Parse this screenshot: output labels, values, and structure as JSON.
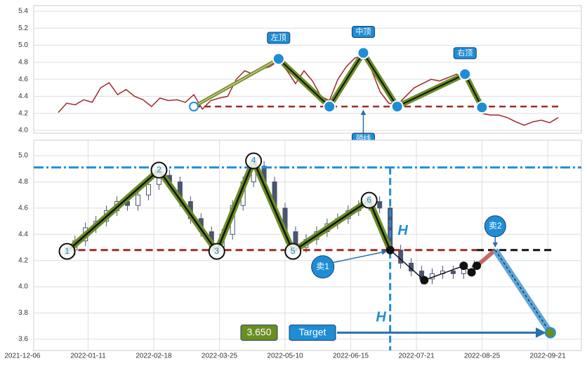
{
  "chart_data": [
    {
      "type": "line",
      "ylim": [
        3.967,
        5.466
      ],
      "yticks": [
        {
          "value": 4,
          "label": "4.0"
        },
        4.2,
        4.4,
        4.6,
        4.8,
        {
          "value": 5,
          "label": "5.0"
        },
        5.2,
        5.4
      ],
      "grid": true,
      "color": "#a0282a",
      "values": [
        4.21,
        4.32,
        4.3,
        4.36,
        4.33,
        4.5,
        4.56,
        4.42,
        4.48,
        4.4,
        4.36,
        4.28,
        4.38,
        4.35,
        4.36,
        4.33,
        4.42,
        4.25,
        4.35,
        4.38,
        4.4,
        4.6,
        4.7,
        4.66,
        4.72,
        4.75,
        4.82,
        4.7,
        4.55,
        4.7,
        4.58,
        4.4,
        4.35,
        4.6,
        4.75,
        4.85,
        4.88,
        4.7,
        4.45,
        4.32,
        4.3,
        4.4,
        4.5,
        4.55,
        4.6,
        4.58,
        4.62,
        4.66,
        4.6,
        4.45,
        4.2,
        4.18,
        4.18,
        4.15,
        4.1,
        4.06,
        4.1,
        4.12,
        4.09,
        4.15
      ],
      "pattern": {
        "x": [
          16,
          26,
          32,
          36,
          40,
          48,
          50
        ],
        "values": [
          4.28,
          4.84,
          4.28,
          4.91,
          4.28,
          4.66,
          4.27
        ],
        "labels": [
          null,
          "左顶",
          null,
          "中顶",
          null,
          "右顶",
          null
        ],
        "color": "#6b8e23"
      },
      "neckline": {
        "value": 4.28,
        "label": "颈线",
        "color": "#a0282a"
      }
    },
    {
      "type": "candlestick",
      "xlim": [
        4.3,
        212.8
      ],
      "xticks": [
        {
          "value": 0,
          "label": "2021-12-06"
        },
        {
          "value": 25,
          "label": "2022-01-11"
        },
        {
          "value": 50,
          "label": "2022-02-18"
        },
        {
          "value": 75,
          "label": "2022-03-25"
        },
        {
          "value": 100,
          "label": "2022-05-10"
        },
        {
          "value": 125,
          "label": "2022-06-15"
        },
        {
          "value": 150,
          "label": "2022-07-21"
        },
        {
          "value": 175,
          "label": "2022-08-25"
        },
        {
          "value": 200,
          "label": "2022-09-21"
        }
      ],
      "ylim": [
        3.514,
        5.118
      ],
      "yticks": [
        3.6,
        3.8,
        {
          "value": 4,
          "label": "4.0"
        },
        4.2,
        4.4,
        4.6,
        4.8,
        {
          "value": 5,
          "label": "5.0"
        }
      ],
      "grid": true,
      "color": "#4a5470",
      "x": [
        16,
        20,
        24,
        28,
        32,
        36,
        40,
        44,
        48,
        52,
        56,
        60,
        64,
        68,
        72,
        76,
        80,
        84,
        88,
        92,
        96,
        100,
        104,
        108,
        112,
        116,
        120,
        124,
        128,
        132,
        136,
        140,
        144,
        148,
        152,
        156,
        160,
        164,
        168,
        172
      ],
      "open": [
        4.25,
        4.28,
        4.35,
        4.45,
        4.5,
        4.58,
        4.65,
        4.62,
        4.7,
        4.78,
        4.85,
        4.8,
        4.65,
        4.52,
        4.42,
        4.3,
        4.4,
        4.62,
        4.8,
        4.92,
        4.8,
        4.6,
        4.42,
        4.3,
        4.36,
        4.42,
        4.48,
        4.52,
        4.58,
        4.62,
        4.65,
        4.6,
        4.28,
        4.18,
        4.12,
        4.06,
        4.1,
        4.12,
        4.1,
        4.15
      ],
      "high": [
        4.32,
        4.39,
        4.49,
        4.54,
        4.62,
        4.69,
        4.69,
        4.74,
        4.82,
        4.89,
        4.89,
        4.84,
        4.69,
        4.56,
        4.46,
        4.44,
        4.66,
        4.84,
        4.96,
        4.96,
        4.84,
        4.64,
        4.46,
        4.4,
        4.46,
        4.52,
        4.56,
        4.62,
        4.66,
        4.69,
        4.69,
        4.64,
        4.32,
        4.22,
        4.16,
        4.14,
        4.16,
        4.16,
        4.19,
        4.2
      ],
      "low": [
        4.21,
        4.24,
        4.31,
        4.41,
        4.46,
        4.54,
        4.58,
        4.58,
        4.66,
        4.74,
        4.76,
        4.61,
        4.48,
        4.38,
        4.26,
        4.26,
        4.36,
        4.58,
        4.76,
        4.76,
        4.56,
        4.38,
        4.26,
        4.26,
        4.32,
        4.38,
        4.44,
        4.48,
        4.54,
        4.58,
        4.56,
        4.24,
        4.14,
        4.08,
        4.02,
        4.02,
        4.06,
        4.06,
        4.06,
        4.11
      ],
      "close": [
        4.28,
        4.35,
        4.45,
        4.5,
        4.58,
        4.65,
        4.62,
        4.7,
        4.78,
        4.85,
        4.8,
        4.65,
        4.52,
        4.42,
        4.3,
        4.4,
        4.62,
        4.8,
        4.92,
        4.8,
        4.6,
        4.42,
        4.3,
        4.36,
        4.42,
        4.48,
        4.52,
        4.58,
        4.62,
        4.65,
        4.6,
        4.28,
        4.18,
        4.12,
        4.06,
        4.1,
        4.12,
        4.1,
        4.15,
        4.16
      ],
      "pattern": {
        "x": [
          17,
          52,
          74,
          88,
          103,
          132
        ],
        "values": [
          4.27,
          4.89,
          4.27,
          4.96,
          4.27,
          4.66
        ],
        "labels": [
          "1",
          "2",
          "3",
          "4",
          "5",
          "6"
        ],
        "color": "#6b8e23"
      },
      "neckline": {
        "value": 4.28,
        "color": "#a0282a"
      },
      "height_line": {
        "value": 4.91,
        "label": "H",
        "color": "#1f8dd6"
      },
      "breakout": {
        "x": 140,
        "value": 4.28,
        "label": "卖1"
      },
      "pullback": {
        "x": [
          140,
          153,
          168,
          171
        ],
        "values": [
          4.28,
          4.05,
          4.16,
          4.11
        ]
      },
      "sell2": {
        "x": [
          173,
          180
        ],
        "values": [
          4.16,
          4.28
        ],
        "label": "卖2"
      },
      "target": {
        "x": 201,
        "value": 3.65,
        "value_label": "3.650",
        "label": "Target"
      }
    }
  ]
}
